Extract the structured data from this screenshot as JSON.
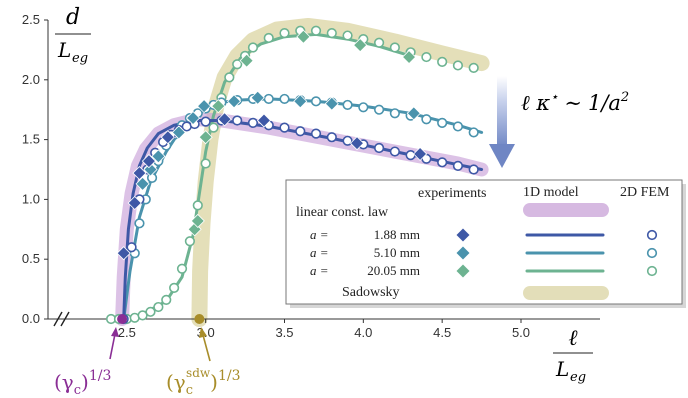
{
  "chart_data": {
    "type": "scatter",
    "title": "",
    "xlabel_num": "ℓ",
    "xlabel_den": "L",
    "xlabel_den_sub": "eg",
    "ylabel_num": "d",
    "ylabel_den": "L",
    "ylabel_den_sub": "eg",
    "xlim": [
      2.0,
      5.0
    ],
    "ylim": [
      0.0,
      2.5
    ],
    "xticks": [
      "2.5",
      "3.0",
      "3.5",
      "4.0",
      "4.5",
      "5.0"
    ],
    "yticks": [
      "0.0",
      "0.5",
      "1.0",
      "1.5",
      "2.0",
      "2.5"
    ],
    "xtick_values": [
      2.5,
      3.0,
      3.5,
      4.0,
      4.5,
      5.0
    ],
    "ytick_values": [
      0.0,
      0.5,
      1.0,
      1.5,
      2.0,
      2.5
    ],
    "colors": {
      "s1": "#3e58a6",
      "s2": "#4a93ad",
      "s3": "#6db391",
      "band_linear": "#c9a2d8",
      "band_sadowsky": "#dfd9ad",
      "arrow": "#6f86c4",
      "gamma_c": "#8a2e95",
      "gamma_sdw": "#a88d2a"
    },
    "annotation_scaling": {
      "lhs": "ℓ κ",
      "star": "⋆",
      "sim": "∼",
      "rhs": "1/a",
      "exp": "2"
    },
    "annotation_gamma_c": {
      "base": "(γ",
      "sub": "c",
      "close": ")",
      "exp": "1/3",
      "x": 2.47
    },
    "annotation_gamma_sdw": {
      "base": "(γ",
      "sub": "c",
      "sup": "sdw",
      "close": ")",
      "exp": "1/3",
      "x": 2.96
    },
    "legend": {
      "header_experiments": "experiments",
      "header_model": "1D model",
      "header_fem": "2D FEM",
      "linear_label": "linear const. law",
      "sadowsky_label": "Sadowsky",
      "rows": [
        {
          "prefix": "a =",
          "value": "1.88 mm"
        },
        {
          "prefix": "a =",
          "value": "5.10 mm"
        },
        {
          "prefix": "a =",
          "value": "20.05 mm"
        }
      ]
    },
    "band_linear": {
      "x": [
        2.47,
        2.48,
        2.5,
        2.53,
        2.57,
        2.62,
        2.7,
        2.8,
        2.95,
        3.1,
        3.4,
        3.8,
        4.2,
        4.6,
        4.75
      ],
      "y": [
        0.0,
        0.35,
        0.75,
        1.05,
        1.28,
        1.42,
        1.55,
        1.62,
        1.67,
        1.66,
        1.6,
        1.5,
        1.4,
        1.3,
        1.25
      ]
    },
    "band_sadowsky": {
      "x": [
        2.96,
        2.965,
        2.98,
        3.0,
        3.03,
        3.07,
        3.12,
        3.2,
        3.3,
        3.45,
        3.65,
        3.9,
        4.2,
        4.5,
        4.75
      ],
      "y": [
        0.0,
        0.4,
        0.8,
        1.15,
        1.5,
        1.8,
        2.02,
        2.2,
        2.33,
        2.42,
        2.45,
        2.41,
        2.32,
        2.22,
        2.14
      ]
    },
    "series": [
      {
        "name": "a = 1.88 mm",
        "model_x": [
          2.48,
          2.49,
          2.51,
          2.54,
          2.58,
          2.63,
          2.7,
          2.8,
          2.95,
          3.1,
          3.4,
          3.8,
          4.2,
          4.6,
          4.75
        ],
        "model_y": [
          0.0,
          0.35,
          0.75,
          1.05,
          1.28,
          1.43,
          1.55,
          1.62,
          1.66,
          1.66,
          1.61,
          1.51,
          1.4,
          1.29,
          1.25
        ],
        "exp_x": [
          2.48,
          2.55,
          2.58,
          2.64,
          2.76,
          3.12,
          3.37,
          3.96,
          4.36
        ],
        "exp_y": [
          0.55,
          0.97,
          1.22,
          1.32,
          1.52,
          1.67,
          1.66,
          1.47,
          1.38
        ],
        "fem_x": [
          2.48,
          2.53,
          2.58,
          2.63,
          2.68,
          2.73,
          2.78,
          2.83,
          2.88,
          2.93,
          3.0,
          3.1,
          3.2,
          3.3,
          3.4,
          3.5,
          3.6,
          3.7,
          3.8,
          3.9,
          4.0,
          4.1,
          4.2,
          4.3,
          4.4,
          4.5,
          4.6,
          4.7
        ],
        "fem_y": [
          0.0,
          0.6,
          1.0,
          1.25,
          1.39,
          1.48,
          1.54,
          1.58,
          1.61,
          1.63,
          1.65,
          1.66,
          1.66,
          1.64,
          1.62,
          1.6,
          1.57,
          1.55,
          1.52,
          1.49,
          1.46,
          1.43,
          1.4,
          1.37,
          1.34,
          1.31,
          1.28,
          1.25
        ]
      },
      {
        "name": "a = 5.10 mm",
        "model_x": [
          2.48,
          2.52,
          2.58,
          2.65,
          2.75,
          2.85,
          2.95,
          3.05,
          3.2,
          3.4,
          3.7,
          4.0,
          4.3,
          4.6,
          4.75
        ],
        "model_y": [
          0.0,
          0.4,
          0.85,
          1.15,
          1.4,
          1.6,
          1.73,
          1.8,
          1.83,
          1.84,
          1.82,
          1.78,
          1.72,
          1.62,
          1.56
        ],
        "exp_x": [
          2.6,
          2.65,
          2.7,
          2.83,
          2.92,
          2.99,
          3.18,
          3.33,
          3.6,
          3.8,
          4.32
        ],
        "exp_y": [
          1.13,
          1.25,
          1.36,
          1.56,
          1.68,
          1.78,
          1.82,
          1.85,
          1.82,
          1.8,
          1.72
        ],
        "fem_x": [
          2.55,
          2.58,
          2.62,
          2.66,
          2.7,
          2.75,
          2.8,
          2.85,
          2.9,
          2.95,
          3.0,
          3.05,
          3.1,
          3.2,
          3.3,
          3.4,
          3.5,
          3.6,
          3.7,
          3.8,
          3.9,
          4.0,
          4.1,
          4.2,
          4.3,
          4.4,
          4.5,
          4.6,
          4.7
        ],
        "fem_y": [
          0.55,
          0.8,
          1.0,
          1.18,
          1.32,
          1.45,
          1.54,
          1.62,
          1.68,
          1.72,
          1.76,
          1.79,
          1.81,
          1.83,
          1.84,
          1.84,
          1.84,
          1.83,
          1.82,
          1.81,
          1.79,
          1.77,
          1.75,
          1.72,
          1.7,
          1.67,
          1.64,
          1.61,
          1.56
        ]
      },
      {
        "name": "a = 20.05 mm",
        "model_x": [
          2.47,
          2.6,
          2.75,
          2.85,
          2.92,
          2.96,
          3.0,
          3.05,
          3.12,
          3.22,
          3.35,
          3.5,
          3.7,
          3.9,
          4.1,
          4.3
        ],
        "model_y": [
          0.0,
          0.04,
          0.15,
          0.35,
          0.7,
          1.05,
          1.4,
          1.7,
          1.98,
          2.18,
          2.3,
          2.36,
          2.38,
          2.34,
          2.28,
          2.2
        ],
        "exp_x": [
          2.93,
          2.95,
          3.0,
          3.08,
          3.26,
          3.62,
          3.98,
          4.29
        ],
        "exp_y": [
          0.75,
          0.82,
          1.52,
          1.78,
          2.16,
          2.36,
          2.29,
          2.19
        ],
        "fem_x": [
          2.4,
          2.45,
          2.5,
          2.55,
          2.6,
          2.65,
          2.7,
          2.75,
          2.8,
          2.85,
          2.9,
          2.95,
          3.0,
          3.05,
          3.1,
          3.15,
          3.2,
          3.25,
          3.3,
          3.4,
          3.5,
          3.6,
          3.7,
          3.8,
          3.9,
          4.0,
          4.1,
          4.2,
          4.3,
          4.4,
          4.5,
          4.6,
          4.7
        ],
        "fem_y": [
          0.0,
          0.0,
          0.0,
          0.01,
          0.03,
          0.06,
          0.1,
          0.16,
          0.26,
          0.42,
          0.65,
          0.95,
          1.3,
          1.6,
          1.85,
          2.02,
          2.13,
          2.2,
          2.27,
          2.35,
          2.39,
          2.41,
          2.41,
          2.39,
          2.37,
          2.34,
          2.31,
          2.27,
          2.23,
          2.19,
          2.15,
          2.12,
          2.1
        ]
      }
    ]
  }
}
